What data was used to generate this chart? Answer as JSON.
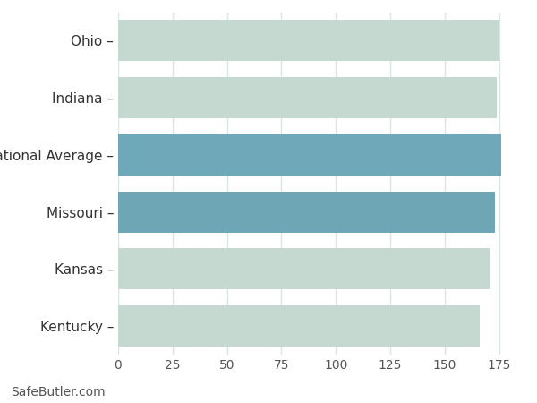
{
  "categories": [
    "Ohio",
    "Indiana",
    "National Average",
    "Missouri",
    "Kansas",
    "Kentucky"
  ],
  "values": [
    175,
    174,
    176,
    173,
    171,
    166
  ],
  "bar_colors": [
    "#c5d9d0",
    "#c5d9d0",
    "#6fa8b8",
    "#6ea6b6",
    "#c5d9d0",
    "#c5d9d0"
  ],
  "xlim": [
    0,
    185
  ],
  "xticks": [
    0,
    25,
    50,
    75,
    100,
    125,
    150,
    175
  ],
  "background_color": "#ffffff",
  "grid_color": "#d8e8e0",
  "bar_height": 0.72,
  "footnote": "SafeButler.com",
  "footnote_fontsize": 10,
  "tick_fontsize": 10,
  "label_fontsize": 11,
  "label_color": "#333333",
  "tick_color": "#555555"
}
